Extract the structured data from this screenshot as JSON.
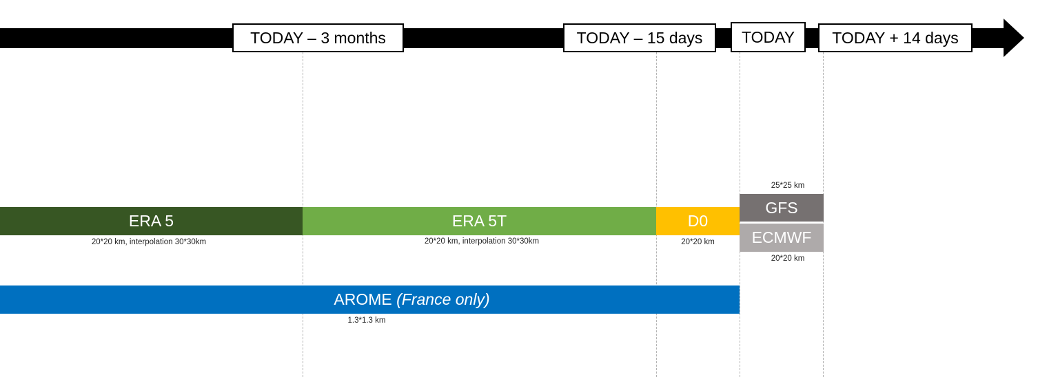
{
  "timeline": {
    "labels": {
      "minus_3_months": "TODAY – 3 months",
      "minus_15_days": "TODAY – 15 days",
      "today": "TODAY",
      "plus_14_days": "TODAY + 14 days"
    }
  },
  "sources": {
    "era5": {
      "label": "ERA 5",
      "resolution": "20*20 km, interpolation 30*30km",
      "color": "#375623"
    },
    "era5t": {
      "label": "ERA 5T",
      "resolution": "20*20 km, interpolation 30*30km",
      "color": "#70ad47"
    },
    "d0": {
      "label": "D0",
      "resolution": "20*20 km",
      "color": "#ffc000"
    },
    "gfs": {
      "label": "GFS",
      "resolution": "25*25 km",
      "color": "#767171"
    },
    "ecmwf": {
      "label": "ECMWF",
      "resolution": "20*20 km",
      "color": "#aeaaaa"
    },
    "arome": {
      "label": "AROME",
      "label_note": "(France only)",
      "resolution": "1.3*1.3 km",
      "color": "#0070c0"
    }
  }
}
